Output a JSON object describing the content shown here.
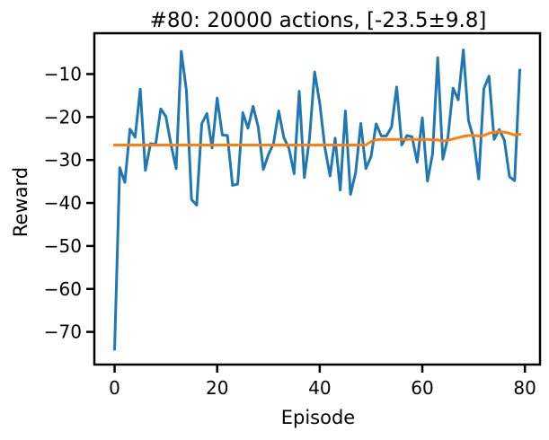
{
  "chart_data": {
    "type": "line",
    "title": "#80: 20000 actions, [-23.5±9.8]",
    "xlabel": "Episode",
    "ylabel": "Reward",
    "xlim": [
      -3.95,
      82.95
    ],
    "ylim": [
      -77.6,
      -0.5
    ],
    "x_ticks": [
      0,
      20,
      40,
      60,
      80
    ],
    "x_tick_labels": [
      "0",
      "20",
      "40",
      "60",
      "80"
    ],
    "y_ticks": [
      -70,
      -60,
      -50,
      -40,
      -30,
      -20,
      -10
    ],
    "y_tick_labels": [
      "−70",
      "−60",
      "−50",
      "−40",
      "−30",
      "−20",
      "−10"
    ],
    "grid": false,
    "legend": "none",
    "series": [
      {
        "color": "#1f77b4",
        "x": [
          0,
          1,
          2,
          3,
          4,
          5,
          6,
          7,
          8,
          9,
          10,
          11,
          12,
          13,
          14,
          15,
          16,
          17,
          18,
          19,
          20,
          21,
          22,
          23,
          24,
          25,
          26,
          27,
          28,
          29,
          30,
          31,
          32,
          33,
          34,
          35,
          36,
          37,
          38,
          39,
          40,
          41,
          42,
          43,
          44,
          45,
          46,
          47,
          48,
          49,
          50,
          51,
          52,
          53,
          54,
          55,
          56,
          57,
          58,
          59,
          60,
          61,
          62,
          63,
          64,
          65,
          66,
          67,
          68,
          69,
          70,
          71,
          72,
          73,
          74,
          75,
          76,
          77,
          78,
          79
        ],
        "values": [
          -74.0,
          -31.8,
          -35.2,
          -22.8,
          -24.7,
          -13.5,
          -32.4,
          -26.2,
          -26.4,
          -18.1,
          -19.9,
          -26.4,
          -32.0,
          -4.7,
          -13.8,
          -39.2,
          -40.5,
          -21.5,
          -19.2,
          -27.2,
          -15.6,
          -24.2,
          -24.3,
          -35.9,
          -35.6,
          -19.0,
          -22.6,
          -17.5,
          -22.3,
          -32.2,
          -28.7,
          -26.1,
          -18.6,
          -24.8,
          -27.3,
          -33.2,
          -14.0,
          -34.1,
          -25.0,
          -9.5,
          -16.8,
          -27.1,
          -33.7,
          -24.9,
          -37.0,
          -18.6,
          -38.0,
          -32.9,
          -21.5,
          -32.0,
          -29.2,
          -21.6,
          -24.4,
          -24.4,
          -22.3,
          -13.0,
          -26.5,
          -24.3,
          -24.6,
          -30.5,
          -20.2,
          -34.9,
          -28.6,
          -6.2,
          -29.8,
          -24.7,
          -13.3,
          -16.0,
          -4.4,
          -20.8,
          -25.0,
          -34.4,
          -13.4,
          -10.5,
          -25.2,
          -22.9,
          -25.4,
          -33.9,
          -34.8,
          -9.1
        ]
      },
      {
        "color": "#ff7f0e",
        "x": [
          0,
          1,
          2,
          3,
          4,
          5,
          6,
          7,
          8,
          9,
          10,
          11,
          12,
          13,
          14,
          15,
          16,
          17,
          18,
          19,
          20,
          21,
          22,
          23,
          24,
          25,
          26,
          27,
          28,
          29,
          30,
          31,
          32,
          33,
          34,
          35,
          36,
          37,
          38,
          39,
          40,
          41,
          42,
          43,
          44,
          45,
          46,
          47,
          48,
          49,
          50,
          51,
          52,
          53,
          54,
          55,
          56,
          57,
          58,
          59,
          60,
          61,
          62,
          63,
          64,
          65,
          66,
          67,
          68,
          69,
          70,
          71,
          72,
          73,
          74,
          75,
          76,
          77,
          78,
          79
        ],
        "values": [
          -26.5,
          -26.5,
          -26.5,
          -26.5,
          -26.5,
          -26.5,
          -26.5,
          -26.5,
          -26.5,
          -26.5,
          -26.5,
          -26.5,
          -26.5,
          -26.5,
          -26.5,
          -26.5,
          -26.5,
          -26.5,
          -26.5,
          -26.5,
          -26.5,
          -26.5,
          -26.5,
          -26.5,
          -26.5,
          -26.5,
          -26.5,
          -26.5,
          -26.5,
          -26.5,
          -26.5,
          -26.5,
          -26.5,
          -26.5,
          -26.5,
          -26.5,
          -26.5,
          -26.5,
          -26.5,
          -26.5,
          -26.5,
          -26.5,
          -26.5,
          -26.5,
          -26.5,
          -26.5,
          -26.5,
          -26.5,
          -26.5,
          -26.5,
          -25.7,
          -25.3,
          -25.2,
          -25.2,
          -25.2,
          -25.2,
          -25.2,
          -25.2,
          -25.2,
          -25.2,
          -25.2,
          -25.2,
          -25.3,
          -25.3,
          -25.6,
          -25.4,
          -25.1,
          -24.8,
          -24.5,
          -24.3,
          -24.3,
          -24.4,
          -24.3,
          -23.8,
          -23.5,
          -23.4,
          -23.5,
          -23.8,
          -24.2,
          -24.0
        ]
      }
    ]
  }
}
